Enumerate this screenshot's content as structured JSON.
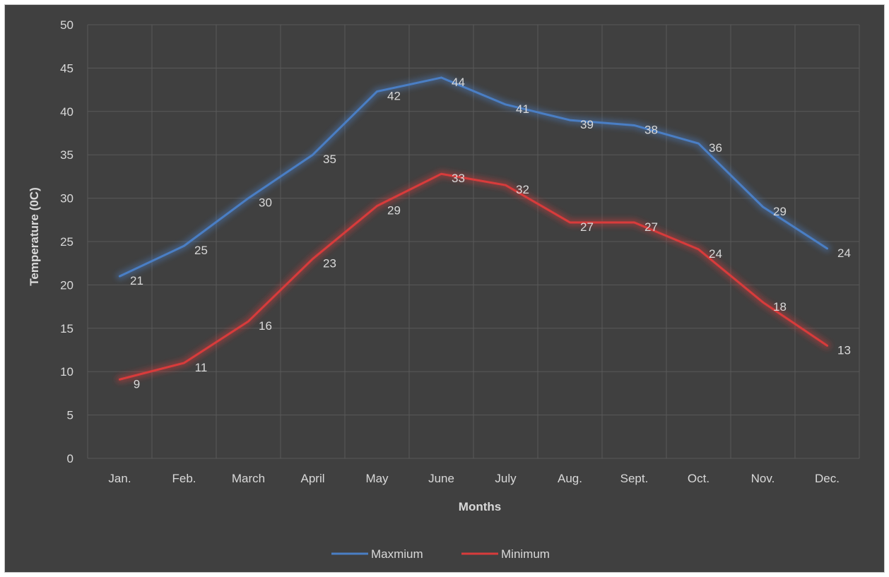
{
  "chart_data": {
    "type": "line",
    "title": "",
    "xlabel": "Months",
    "ylabel": "Temperature (0C)",
    "ylim": [
      0,
      50
    ],
    "yticks": [
      0,
      5,
      10,
      15,
      20,
      25,
      30,
      35,
      40,
      45,
      50
    ],
    "grid": true,
    "legend_position": "bottom",
    "categories": [
      "Jan.",
      "Feb.",
      "March",
      "April",
      "May",
      "June",
      "July",
      "Aug.",
      "Sept.",
      "Oct.",
      "Nov.",
      "Dec."
    ],
    "series": [
      {
        "name": "Maxmium",
        "color": "#4a7ec4",
        "values": [
          21,
          24.5,
          30,
          35,
          42.3,
          43.9,
          40.8,
          39,
          38.4,
          36.3,
          29,
          24.2
        ],
        "labels": [
          "21",
          "25",
          "30",
          "35",
          "42",
          "44",
          "41",
          "39",
          "38",
          "36",
          "29",
          "24"
        ]
      },
      {
        "name": "Minimum",
        "color": "#d83b3b",
        "values": [
          9.1,
          11,
          15.8,
          23,
          29.1,
          32.8,
          31.5,
          27.2,
          27.2,
          24.1,
          18,
          13
        ],
        "labels": [
          "9",
          "11",
          "16",
          "23",
          "29",
          "33",
          "32",
          "27",
          "27",
          "24",
          "18",
          "13"
        ]
      }
    ]
  }
}
